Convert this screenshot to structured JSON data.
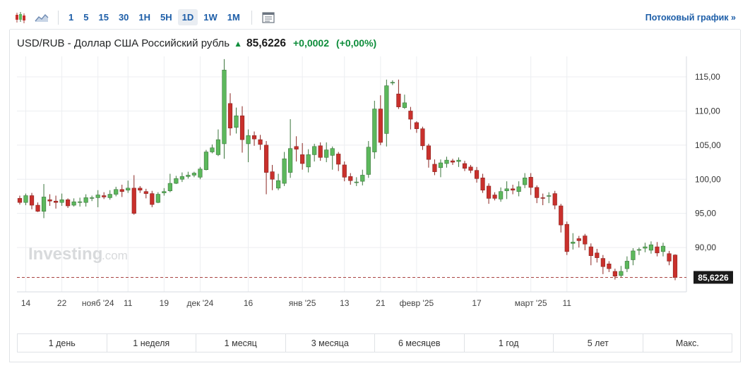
{
  "toolbar": {
    "icons": [
      "candlestick-icon",
      "area-chart-icon",
      "news-panel-icon"
    ],
    "timeframes": [
      "1",
      "5",
      "15",
      "30",
      "1H",
      "5H",
      "1D",
      "1W",
      "1M"
    ],
    "active_timeframe": "1D",
    "stream_link": "Потоковый график »"
  },
  "header": {
    "title": "USD/RUB - Доллар США Российский рубль",
    "price": "85,6226",
    "change": "+0,0002",
    "change_pct": "(+0,00%)"
  },
  "watermark": {
    "brand": "Investing",
    "suffix": ".com"
  },
  "periods": [
    "1 день",
    "1 неделя",
    "1 месяц",
    "3 месяца",
    "6 месяцев",
    "1 год",
    "5 лет",
    "Макс."
  ],
  "colors": {
    "up": "#5cb85c",
    "down": "#c9302c",
    "last_line": "#a94442",
    "grid": "#eceef1"
  },
  "chart_data": {
    "type": "candlestick",
    "y_ticks": [
      "115,00",
      "110,00",
      "105,00",
      "100,00",
      "95,00",
      "90,00"
    ],
    "y_tick_values": [
      115,
      110,
      105,
      100,
      95,
      90
    ],
    "ylim": [
      83.5,
      118
    ],
    "x_labels": [
      {
        "label": "14",
        "i": 1
      },
      {
        "label": "22",
        "i": 7
      },
      {
        "label": "нояб '24",
        "i": 13
      },
      {
        "label": "11",
        "i": 18
      },
      {
        "label": "19",
        "i": 24
      },
      {
        "label": "дек '24",
        "i": 30
      },
      {
        "label": "16",
        "i": 38
      },
      {
        "label": "янв '25",
        "i": 47
      },
      {
        "label": "13",
        "i": 54
      },
      {
        "label": "21",
        "i": 60
      },
      {
        "label": "февр '25",
        "i": 66
      },
      {
        "label": "17",
        "i": 76
      },
      {
        "label": "март '25",
        "i": 85
      },
      {
        "label": "11",
        "i": 91
      }
    ],
    "last_price": 85.6226,
    "last_label": "85,6226",
    "candles": [
      [
        97.2,
        96.6,
        97.6,
        96.3
      ],
      [
        96.6,
        97.6,
        97.9,
        96.2
      ],
      [
        97.6,
        96.2,
        98.0,
        95.6
      ],
      [
        96.2,
        95.3,
        96.6,
        95.2
      ],
      [
        95.3,
        97.4,
        99.3,
        94.3
      ],
      [
        97.0,
        96.8,
        97.8,
        96.1
      ],
      [
        96.8,
        96.6,
        97.6,
        95.7
      ],
      [
        96.6,
        97.0,
        97.9,
        96.1
      ],
      [
        97.0,
        96.1,
        97.2,
        95.8
      ],
      [
        96.2,
        96.7,
        97.2,
        96.0
      ],
      [
        96.7,
        96.7,
        97.3,
        96.0
      ],
      [
        96.6,
        97.3,
        97.8,
        96.0
      ],
      [
        97.3,
        97.3,
        97.6,
        96.8
      ],
      [
        97.3,
        97.7,
        98.4,
        95.9
      ],
      [
        97.6,
        97.4,
        98.1,
        97.1
      ],
      [
        97.3,
        97.8,
        98.4,
        97.0
      ],
      [
        97.8,
        98.5,
        98.9,
        97.5
      ],
      [
        98.5,
        98.2,
        99.2,
        97.4
      ],
      [
        98.4,
        98.7,
        99.8,
        98.0
      ],
      [
        98.7,
        95.0,
        100.6,
        94.8
      ],
      [
        98.7,
        98.4,
        99.0,
        98.0
      ],
      [
        98.2,
        97.9,
        98.6,
        97.2
      ],
      [
        97.9,
        96.3,
        98.3,
        95.9
      ],
      [
        96.6,
        97.8,
        98.1,
        96.5
      ],
      [
        98.0,
        98.2,
        98.7,
        97.6
      ],
      [
        98.3,
        99.4,
        100.8,
        98.1
      ],
      [
        99.4,
        100.1,
        100.5,
        99.3
      ],
      [
        100.0,
        100.4,
        101.0,
        99.6
      ],
      [
        100.4,
        100.6,
        101.1,
        100.1
      ],
      [
        100.6,
        100.9,
        101.1,
        100.3
      ],
      [
        100.3,
        101.5,
        101.8,
        100.0
      ],
      [
        101.4,
        104.0,
        104.3,
        101.3
      ],
      [
        104.0,
        104.6,
        105.1,
        103.8
      ],
      [
        103.6,
        105.8,
        107.3,
        103.4
      ],
      [
        105.2,
        116.0,
        117.6,
        103.0
      ],
      [
        111.1,
        107.5,
        112.6,
        106.4
      ],
      [
        107.6,
        109.3,
        110.5,
        106.7
      ],
      [
        109.3,
        105.8,
        110.7,
        103.9
      ],
      [
        105.2,
        106.4,
        107.3,
        102.5
      ],
      [
        106.4,
        105.9,
        107.0,
        104.9
      ],
      [
        105.8,
        105.1,
        106.5,
        104.3
      ],
      [
        105.0,
        101.0,
        105.6,
        97.8
      ],
      [
        101.1,
        100.0,
        102.1,
        98.4
      ],
      [
        98.7,
        99.8,
        100.8,
        98.4
      ],
      [
        99.4,
        103.0,
        104.0,
        99.0
      ],
      [
        101.0,
        104.5,
        108.8,
        100.2
      ],
      [
        104.8,
        104.4,
        106.3,
        102.6
      ],
      [
        103.6,
        102.3,
        105.3,
        101.4
      ],
      [
        101.8,
        103.6,
        104.4,
        101.0
      ],
      [
        103.6,
        104.8,
        105.2,
        102.6
      ],
      [
        104.9,
        103.2,
        105.4,
        102.7
      ],
      [
        103.2,
        104.3,
        105.4,
        102.5
      ],
      [
        103.5,
        104.5,
        104.8,
        101.4
      ],
      [
        103.7,
        102.2,
        104.0,
        101.2
      ],
      [
        102.1,
        100.3,
        102.6,
        99.7
      ],
      [
        100.4,
        99.8,
        100.9,
        99.2
      ],
      [
        99.6,
        99.6,
        100.3,
        99.0
      ],
      [
        99.7,
        100.6,
        101.4,
        99.1
      ],
      [
        100.7,
        104.7,
        105.6,
        100.2
      ],
      [
        104.0,
        110.3,
        111.5,
        103.0
      ],
      [
        110.3,
        105.4,
        112.3,
        105.0
      ],
      [
        106.7,
        113.7,
        114.6,
        104.8
      ],
      [
        114.1,
        114.2,
        114.5,
        113.8
      ],
      [
        112.5,
        110.6,
        114.6,
        110.3
      ],
      [
        110.5,
        111.2,
        112.4,
        110.3
      ],
      [
        110.0,
        108.8,
        110.6,
        107.3
      ],
      [
        108.3,
        107.4,
        108.5,
        106.8
      ],
      [
        107.4,
        104.9,
        107.7,
        104.3
      ],
      [
        104.9,
        102.9,
        105.2,
        101.7
      ],
      [
        102.2,
        101.1,
        102.9,
        100.6
      ],
      [
        101.7,
        102.4,
        102.9,
        100.3
      ],
      [
        102.3,
        102.8,
        103.3,
        101.7
      ],
      [
        102.7,
        102.5,
        103.0,
        102.1
      ],
      [
        102.6,
        102.8,
        103.2,
        101.8
      ],
      [
        102.3,
        101.6,
        102.7,
        101.2
      ],
      [
        101.8,
        101.3,
        102.1,
        100.9
      ],
      [
        101.3,
        100.1,
        101.8,
        99.5
      ],
      [
        100.2,
        98.4,
        100.8,
        98.0
      ],
      [
        99.0,
        97.2,
        99.4,
        96.4
      ],
      [
        97.7,
        97.2,
        98.1,
        96.9
      ],
      [
        97.1,
        98.2,
        98.8,
        96.7
      ],
      [
        98.3,
        98.6,
        99.7,
        97.1
      ],
      [
        98.6,
        98.4,
        99.2,
        97.8
      ],
      [
        98.2,
        98.9,
        99.7,
        97.5
      ],
      [
        99.2,
        100.2,
        100.9,
        98.7
      ],
      [
        100.3,
        98.8,
        100.9,
        97.7
      ],
      [
        98.8,
        97.3,
        99.1,
        96.5
      ],
      [
        97.3,
        97.2,
        97.9,
        96.2
      ],
      [
        97.5,
        97.6,
        98.1,
        96.5
      ],
      [
        97.9,
        96.2,
        98.3,
        95.6
      ],
      [
        96.1,
        93.3,
        96.4,
        92.2
      ],
      [
        93.4,
        89.4,
        93.8,
        88.9
      ],
      [
        90.6,
        90.8,
        92.1,
        89.7
      ],
      [
        91.3,
        91.0,
        91.7,
        90.0
      ],
      [
        91.7,
        90.5,
        92.0,
        89.6
      ],
      [
        90.1,
        88.8,
        90.6,
        87.4
      ],
      [
        89.2,
        88.5,
        89.8,
        87.8
      ],
      [
        88.4,
        87.2,
        88.9,
        86.1
      ],
      [
        87.6,
        86.9,
        88.0,
        86.4
      ],
      [
        86.5,
        85.8,
        86.9,
        85.3
      ],
      [
        85.9,
        86.5,
        87.3,
        85.6
      ],
      [
        86.9,
        88.0,
        88.7,
        86.4
      ],
      [
        88.2,
        89.5,
        89.9,
        87.4
      ],
      [
        89.6,
        89.7,
        90.0,
        88.9
      ],
      [
        89.9,
        90.1,
        90.7,
        89.3
      ],
      [
        89.6,
        90.4,
        90.9,
        89.1
      ],
      [
        90.1,
        89.2,
        90.8,
        88.7
      ],
      [
        89.4,
        90.2,
        90.7,
        88.7
      ],
      [
        89.1,
        88.0,
        89.5,
        87.4
      ],
      [
        88.9,
        85.6,
        89.0,
        85.2
      ]
    ]
  }
}
